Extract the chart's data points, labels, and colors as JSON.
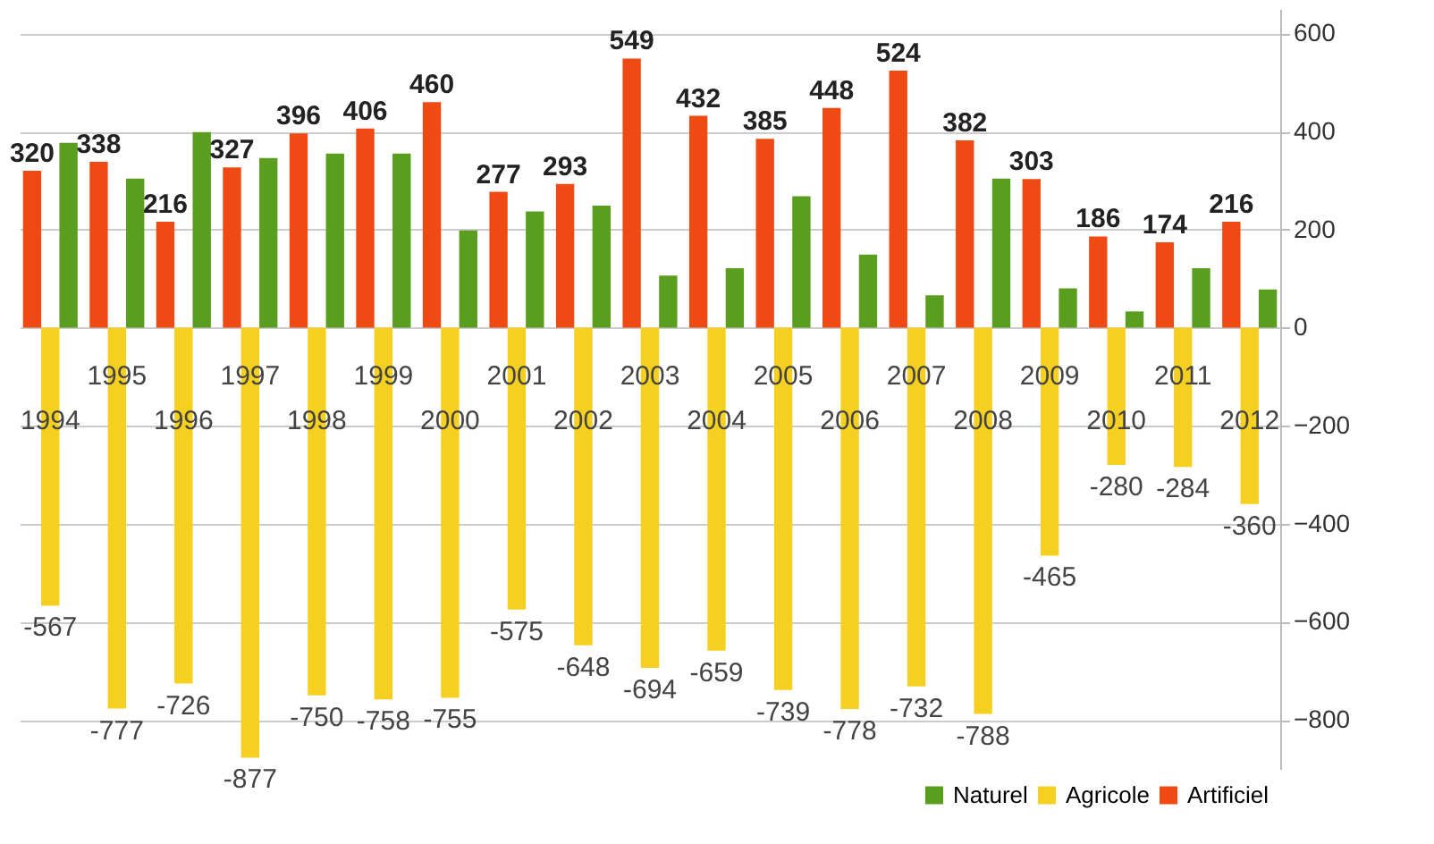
{
  "chart_data": {
    "type": "bar",
    "categories": [
      "1994",
      "1995",
      "1996",
      "1997",
      "1998",
      "1999",
      "2000",
      "2001",
      "2002",
      "2003",
      "2004",
      "2005",
      "2006",
      "2007",
      "2008",
      "2009",
      "2010",
      "2011",
      "2012"
    ],
    "series": [
      {
        "name": "Naturel",
        "color": "#5a9e1f",
        "values": [
          377,
          304,
          399,
          346,
          355,
          355,
          198,
          237,
          249,
          106,
          121,
          268,
          149,
          66,
          304,
          80,
          33,
          121,
          78
        ]
      },
      {
        "name": "Agricole",
        "color": "#f5d020",
        "values": [
          -567,
          -777,
          -726,
          -877,
          -750,
          -758,
          -755,
          -575,
          -648,
          -694,
          -659,
          -739,
          -778,
          -732,
          -788,
          -465,
          -280,
          -284,
          -360
        ],
        "value_labels": [
          "-567",
          "-777",
          "-726",
          "-877",
          "-750",
          "-758",
          "-755",
          "-575",
          "-648",
          "-694",
          "-659",
          "-739",
          "-778",
          "-732",
          "-788",
          "-465",
          "-280",
          "-284",
          "-360"
        ]
      },
      {
        "name": "Artificiel",
        "color": "#f04a14",
        "values": [
          320,
          338,
          216,
          327,
          396,
          406,
          460,
          277,
          293,
          549,
          432,
          385,
          448,
          524,
          382,
          303,
          186,
          174,
          216
        ],
        "value_labels": [
          "320",
          "338",
          "216",
          "327",
          "396",
          "406",
          "460",
          "277",
          "293",
          "549",
          "432",
          "385",
          "448",
          "524",
          "382",
          "303",
          "186",
          "174",
          "216"
        ]
      }
    ],
    "ylim": [
      -900,
      650
    ],
    "yticks": [
      -800,
      -600,
      -400,
      -200,
      0,
      200,
      400,
      600
    ],
    "grid": "y",
    "legend": "bottom right"
  }
}
